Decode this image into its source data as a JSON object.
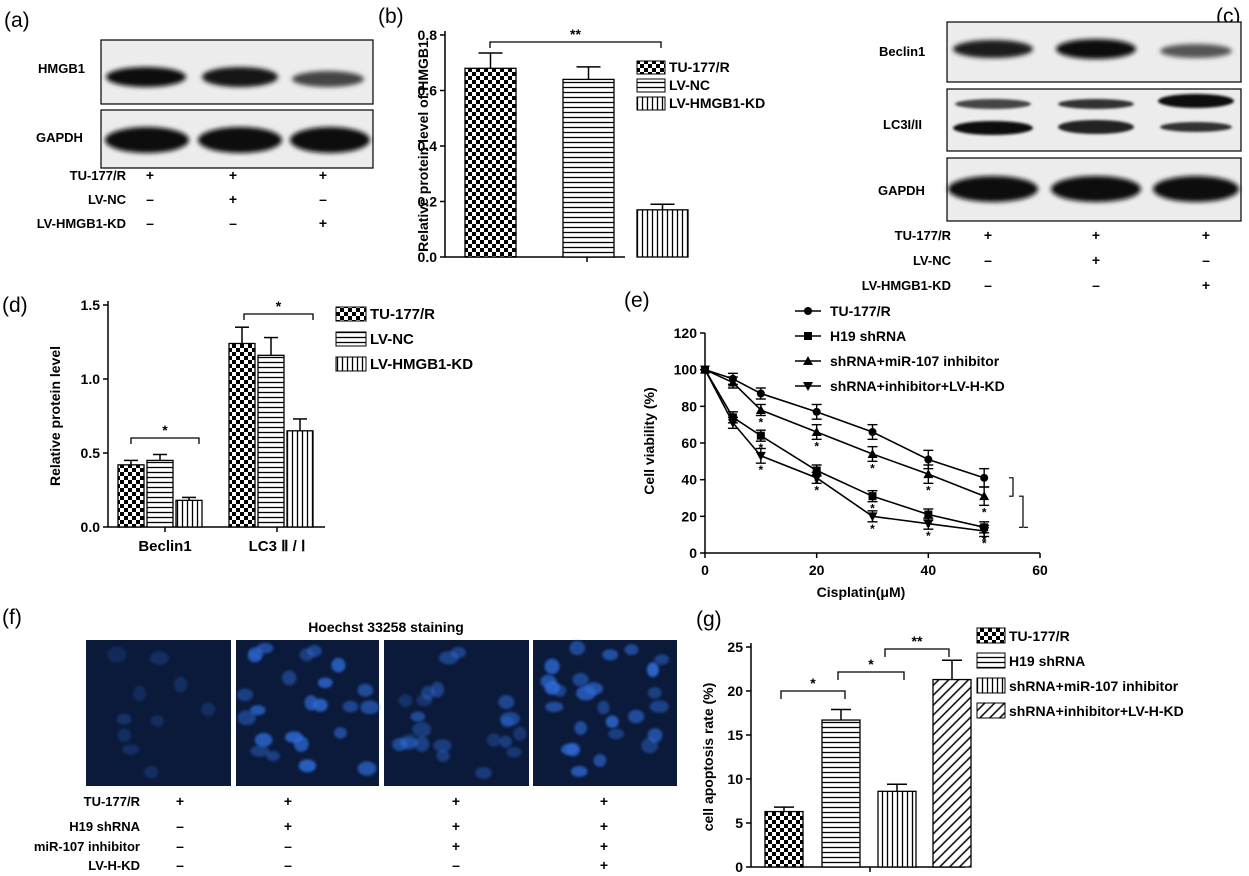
{
  "panels": {
    "a": {
      "letter": "(a)",
      "blot_labels": [
        "HMGB1",
        "GAPDH"
      ],
      "row_labels": [
        "TU-177/R",
        "LV-NC",
        "LV-HMGB1-KD"
      ],
      "signs": [
        [
          "+",
          "+",
          "+"
        ],
        [
          "–",
          "+",
          "–"
        ],
        [
          "–",
          "–",
          "+"
        ]
      ]
    },
    "c": {
      "letter": "(c)",
      "blot_labels": [
        "Beclin1",
        "LC3I/II",
        "GAPDH"
      ],
      "row_labels": [
        "TU-177/R",
        "LV-NC",
        "LV-HMGB1-KD"
      ],
      "signs": [
        [
          "+",
          "+",
          "+"
        ],
        [
          "–",
          "+",
          "–"
        ],
        [
          "–",
          "–",
          "+"
        ]
      ]
    },
    "f": {
      "letter": "(f)",
      "title": "Hoechst 33258 staining",
      "row_labels": [
        "TU-177/R",
        "H19 shRNA",
        "miR-107 inhibitor",
        "LV-H-KD"
      ],
      "signs": [
        [
          "+",
          "+",
          "+",
          "+"
        ],
        [
          "–",
          "+",
          "+",
          "+"
        ],
        [
          "–",
          "–",
          "+",
          "+"
        ],
        [
          "–",
          "–",
          "–",
          "+"
        ]
      ]
    }
  },
  "colors": {
    "ink": "#000000",
    "blot_bg": "#ececec",
    "band": "#111111",
    "micro_bg": "#0b1a3a",
    "nucleus": "#2f6bd6"
  },
  "chart_data": [
    {
      "id": "b",
      "letter": "(b)",
      "type": "bar",
      "categories": [
        "TU-177/R",
        "LV-NC",
        "LV-HMGB1-KD"
      ],
      "values": [
        0.68,
        0.64,
        0.17
      ],
      "errors": [
        0.055,
        0.045,
        0.02
      ],
      "patterns": [
        "check",
        "hlines",
        "vlines"
      ],
      "legend": [
        "TU-177/R",
        "LV-NC",
        "LV-HMGB1-KD"
      ],
      "ylabel": "Relative protein level of HMGB1",
      "ylim": [
        0,
        0.8
      ],
      "yticks": [
        "0.0",
        "0.2",
        "0.4",
        "0.6",
        "0.8"
      ],
      "significance": [
        {
          "from": 0,
          "to": 2,
          "label": "**"
        }
      ]
    },
    {
      "id": "d",
      "letter": "(d)",
      "type": "bar",
      "categories": [
        "Beclin1",
        "LC3 Ⅱ / Ⅰ"
      ],
      "series": [
        {
          "name": "TU-177/R",
          "values": [
            0.42,
            1.24
          ],
          "errors": [
            0.03,
            0.11
          ]
        },
        {
          "name": "LV-NC",
          "values": [
            0.45,
            1.16
          ],
          "errors": [
            0.04,
            0.12
          ]
        },
        {
          "name": "LV-HMGB1-KD",
          "values": [
            0.18,
            0.65
          ],
          "errors": [
            0.02,
            0.08
          ]
        }
      ],
      "patterns": [
        "check",
        "hlines",
        "vlines"
      ],
      "ylabel": "Relative protein level",
      "ylim": [
        0,
        1.5
      ],
      "yticks": [
        "0.0",
        "0.5",
        "1.0",
        "1.5"
      ],
      "significance": [
        {
          "group": 0,
          "label": "*"
        },
        {
          "group": 1,
          "label": "*"
        }
      ]
    },
    {
      "id": "e",
      "letter": "(e)",
      "type": "line",
      "x": [
        0,
        5,
        10,
        20,
        30,
        40,
        50
      ],
      "series": [
        {
          "name": "TU-177/R",
          "marker": "circle",
          "values": [
            100,
            95,
            87,
            77,
            66,
            51,
            41
          ],
          "errors": [
            0,
            3,
            3,
            4,
            4,
            5,
            5
          ]
        },
        {
          "name": "H19 shRNA",
          "marker": "square",
          "values": [
            100,
            74,
            64,
            45,
            31,
            21,
            14
          ],
          "errors": [
            0,
            3,
            3,
            3,
            3,
            3,
            3
          ]
        },
        {
          "name": "shRNA+miR-107 inhibitor",
          "marker": "triangle-up",
          "values": [
            100,
            93,
            78,
            66,
            54,
            43,
            31
          ],
          "errors": [
            0,
            3,
            3,
            4,
            4,
            5,
            5
          ]
        },
        {
          "name": "shRNA+inhibitor+LV-H-KD",
          "marker": "triangle-down",
          "values": [
            100,
            71,
            53,
            41,
            20,
            16,
            12
          ],
          "errors": [
            0,
            3,
            4,
            3,
            3,
            3,
            3
          ]
        }
      ],
      "xlabel": "Cisplatin(μM)",
      "ylabel": "Cell viability (%)",
      "xlim": [
        0,
        60
      ],
      "ylim": [
        0,
        120
      ],
      "xticks": [
        "0",
        "20",
        "40",
        "60"
      ],
      "yticks": [
        "0",
        "20",
        "40",
        "60",
        "80",
        "100",
        "120"
      ],
      "asterisk": "*"
    },
    {
      "id": "g",
      "letter": "(g)",
      "type": "bar",
      "categories": [
        "TU-177/R",
        "H19 shRNA",
        "shRNA+miR-107 inhibitor",
        "shRNA+inhibitor+LV-H-KD"
      ],
      "values": [
        6.3,
        16.7,
        8.6,
        21.3
      ],
      "errors": [
        0.5,
        1.2,
        0.8,
        2.2
      ],
      "patterns": [
        "check",
        "hlines",
        "vlines",
        "diag"
      ],
      "legend": [
        "TU-177/R",
        "H19 shRNA",
        "shRNA+miR-107 inhibitor",
        "shRNA+inhibitor+LV-H-KD"
      ],
      "ylabel": "cell apoptosis rate (%)",
      "ylim": [
        0,
        25
      ],
      "yticks": [
        "0",
        "5",
        "10",
        "15",
        "20",
        "25"
      ],
      "significance": [
        {
          "from": 0,
          "to": 1,
          "label": "*"
        },
        {
          "from": 1,
          "to": 2,
          "label": "*"
        },
        {
          "from": 2,
          "to": 3,
          "label": "**"
        }
      ]
    }
  ]
}
